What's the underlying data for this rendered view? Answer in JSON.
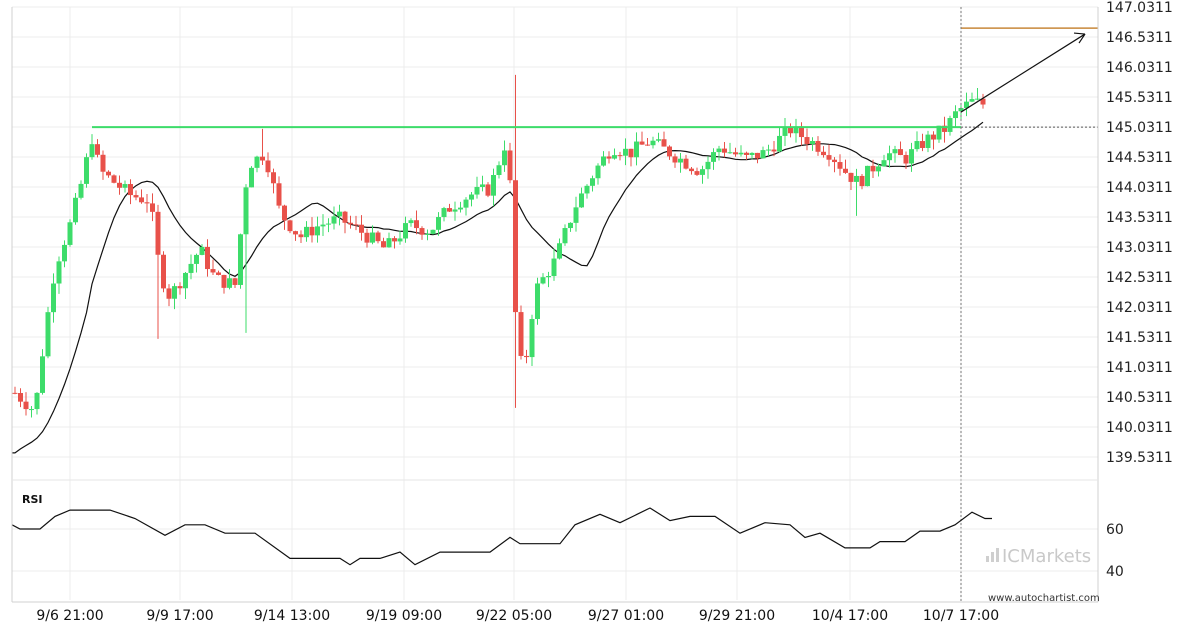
{
  "chart_data": {
    "type": "candlestick",
    "y_axis": {
      "min": 139.5311,
      "max": 147.0311,
      "ticks": [
        "147.0311",
        "146.5311",
        "146.0311",
        "145.5311",
        "145.0311",
        "144.5311",
        "144.0311",
        "143.5311",
        "143.0311",
        "142.5311",
        "142.0311",
        "141.5311",
        "141.0311",
        "140.5311",
        "140.0311",
        "139.5311"
      ]
    },
    "x_axis": {
      "ticks": [
        "9/6 21:00",
        "9/9 17:00",
        "9/14 13:00",
        "9/19 09:00",
        "9/22 05:00",
        "9/27 01:00",
        "9/29 21:00",
        "10/4 17:00",
        "10/7 17:00"
      ]
    },
    "pattern": {
      "resistance_level": 145.03,
      "forecast_target": 146.68,
      "breakout_time": "10/7 17:00"
    },
    "rsi": {
      "label": "RSI",
      "ticks": [
        "60",
        "40"
      ],
      "range": [
        30,
        80
      ]
    },
    "colors": {
      "bull": "#3ddc6a",
      "bear": "#e8514a",
      "resistance": "#3ddc6a",
      "target": "#c8883a",
      "ma": "#111111",
      "grid": "#ececec"
    }
  },
  "branding": {
    "logo": "ICMarkets",
    "site": "www.autochartist.com"
  }
}
